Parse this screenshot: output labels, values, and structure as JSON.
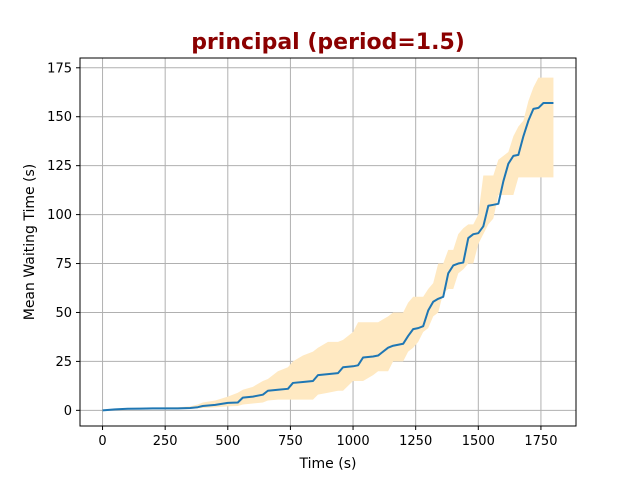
{
  "chart_data": {
    "type": "area",
    "title": "principal (period=1.5)",
    "xlabel": "Time (s)",
    "ylabel": "Mean Waiting Time (s)",
    "xlim": [
      -90,
      1890
    ],
    "ylim": [
      -8,
      180
    ],
    "xticks": [
      0,
      250,
      500,
      750,
      1000,
      1250,
      1500,
      1750
    ],
    "yticks": [
      0,
      25,
      50,
      75,
      100,
      125,
      150,
      175
    ],
    "grid": true,
    "colors": {
      "title": "#8b0000",
      "line": "#1f77b4",
      "band": "#ffe9c2",
      "grid": "#b0b0b0"
    },
    "series": [
      {
        "x": [
          0,
          50,
          100,
          150,
          200,
          250,
          300,
          350,
          380,
          400,
          450,
          500,
          540,
          560,
          600,
          640,
          660,
          700,
          740,
          760,
          800,
          840,
          860,
          900,
          940,
          960,
          1000,
          1020,
          1040,
          1080,
          1100,
          1140,
          1160,
          1200,
          1220,
          1240,
          1260,
          1280,
          1300,
          1320,
          1340,
          1360,
          1380,
          1400,
          1420,
          1440,
          1460,
          1480,
          1500,
          1520,
          1540,
          1560,
          1580,
          1600,
          1620,
          1640,
          1660,
          1680,
          1700,
          1720,
          1740,
          1760,
          1780,
          1800
        ],
        "y": [
          0,
          0.5,
          0.8,
          0.9,
          1.0,
          1.0,
          1.0,
          1.2,
          1.6,
          2.2,
          2.8,
          3.8,
          4.0,
          6.5,
          7.0,
          8.0,
          10.0,
          10.5,
          11.0,
          14.0,
          14.5,
          15.0,
          18.0,
          18.5,
          19.0,
          22.0,
          22.5,
          23.0,
          27.0,
          27.5,
          28.0,
          32.0,
          33.0,
          34.0,
          38.0,
          41.5,
          42.0,
          43.0,
          51.0,
          55.5,
          57.0,
          58.0,
          70.0,
          74.0,
          75.0,
          75.5,
          88.0,
          90.0,
          90.5,
          94.0,
          104.5,
          105.0,
          105.5,
          117.0,
          126.0,
          130.0,
          130.5,
          140.0,
          148.0,
          154.0,
          154.5,
          157.0,
          157.0,
          157.0
        ],
        "lower": [
          0,
          0.3,
          0.5,
          0.6,
          0.7,
          0.7,
          0.7,
          0.8,
          1.0,
          1.2,
          1.5,
          2.0,
          2.2,
          3.0,
          3.5,
          4.0,
          5.0,
          5.5,
          5.5,
          5.5,
          5.5,
          5.5,
          8.0,
          9.0,
          10.0,
          10.0,
          15.0,
          15.0,
          15.0,
          18.0,
          20.0,
          20.0,
          25.0,
          25.0,
          30.0,
          32.0,
          35.0,
          40.0,
          42.0,
          48.0,
          50.0,
          60.0,
          62.0,
          62.0,
          70.0,
          72.0,
          75.0,
          75.0,
          85.0,
          90.0,
          95.0,
          98.0,
          110.0,
          110.0,
          110.0,
          110.0,
          119.0,
          119.0,
          119.0,
          119.0,
          119.0,
          119.0,
          119.0,
          119.0
        ],
        "upper": [
          0,
          0.8,
          1.2,
          1.3,
          1.4,
          1.5,
          1.6,
          2.0,
          3.0,
          4.0,
          5.0,
          7.0,
          9.0,
          10.5,
          12.0,
          15.0,
          16.0,
          20.0,
          22.0,
          25.0,
          28.0,
          30.0,
          32.0,
          35.0,
          35.0,
          36.0,
          40.0,
          45.0,
          45.0,
          45.0,
          45.0,
          48.0,
          50.0,
          50.0,
          55.0,
          58.0,
          58.0,
          58.0,
          62.0,
          65.0,
          75.0,
          75.0,
          82.0,
          82.0,
          90.0,
          93.0,
          95.0,
          95.0,
          100.0,
          120.0,
          120.0,
          120.0,
          128.0,
          130.0,
          132.0,
          140.0,
          145.0,
          148.0,
          158.0,
          165.0,
          170.0,
          170.0,
          170.0,
          170.0
        ]
      }
    ]
  }
}
